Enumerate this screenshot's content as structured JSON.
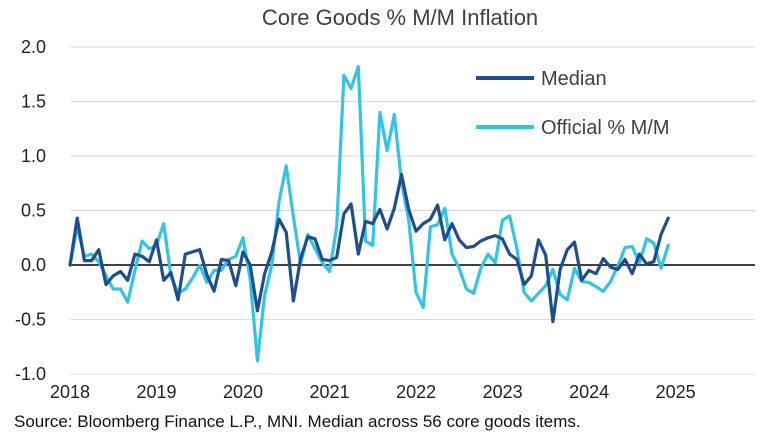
{
  "chart_data": {
    "type": "line",
    "title": "Core Goods % M/M Inflation",
    "source": "Source: Bloomberg Finance L.P., MNI.  Median across 56 core goods items.",
    "ylim": [
      -1.0,
      2.0
    ],
    "xlim": [
      2018.0,
      2025.917
    ],
    "y_ticks": [
      "2.0",
      "1.5",
      "1.0",
      "0.5",
      "0.0",
      "-0.5",
      "-1.0"
    ],
    "y_tick_values": [
      2.0,
      1.5,
      1.0,
      0.5,
      0.0,
      -0.5,
      -1.0
    ],
    "x_ticks": [
      "2018",
      "2019",
      "2020",
      "2021",
      "2022",
      "2023",
      "2024",
      "2025"
    ],
    "x_tick_values": [
      2018,
      2019,
      2020,
      2021,
      2022,
      2023,
      2024,
      2025
    ],
    "grid": "horizontal",
    "legend_position": "top-right",
    "series": [
      {
        "name": "Median",
        "color": "#1F4E8C",
        "x_start": 2018.0,
        "x_step": 0.0833,
        "values": [
          0.0,
          0.43,
          0.04,
          0.04,
          0.14,
          -0.18,
          -0.1,
          -0.06,
          -0.14,
          0.1,
          0.08,
          0.03,
          0.23,
          -0.14,
          -0.07,
          -0.32,
          0.1,
          0.12,
          0.14,
          -0.09,
          -0.24,
          0.05,
          0.04,
          -0.19,
          0.12,
          0.0,
          -0.42,
          -0.08,
          0.12,
          0.42,
          0.3,
          -0.33,
          0.06,
          0.26,
          0.24,
          0.05,
          0.04,
          0.07,
          0.47,
          0.56,
          0.1,
          0.4,
          0.38,
          0.51,
          0.33,
          0.52,
          0.83,
          0.51,
          0.31,
          0.38,
          0.42,
          0.55,
          0.23,
          0.38,
          0.23,
          0.16,
          0.17,
          0.22,
          0.25,
          0.27,
          0.24,
          0.1,
          0.05,
          -0.18,
          -0.1,
          0.23,
          0.09,
          -0.52,
          -0.04,
          0.14,
          0.21,
          -0.14,
          -0.05,
          -0.08,
          0.06,
          -0.02,
          -0.04,
          0.05,
          -0.08,
          0.1,
          0.01,
          0.03,
          0.28,
          0.43
        ]
      },
      {
        "name": "Official % M/M",
        "color": "#33C4E4",
        "x_start": 2018.0,
        "x_step": 0.0833,
        "values": [
          0.0,
          0.35,
          0.08,
          0.1,
          0.03,
          -0.1,
          -0.22,
          -0.22,
          -0.34,
          -0.05,
          0.22,
          0.15,
          0.18,
          0.38,
          -0.1,
          -0.26,
          -0.22,
          -0.12,
          0.0,
          -0.16,
          -0.05,
          -0.05,
          0.05,
          0.08,
          0.25,
          -0.13,
          -0.88,
          -0.28,
          0.0,
          0.58,
          0.91,
          0.44,
          0.01,
          0.28,
          0.15,
          0.02,
          -0.06,
          0.35,
          1.74,
          1.62,
          1.82,
          0.22,
          0.18,
          1.4,
          1.05,
          1.38,
          0.76,
          0.41,
          -0.25,
          -0.39,
          0.35,
          0.37,
          0.52,
          0.1,
          -0.03,
          -0.22,
          -0.26,
          -0.03,
          0.1,
          0.02,
          0.41,
          0.45,
          0.15,
          -0.25,
          -0.33,
          -0.26,
          -0.19,
          -0.04,
          -0.27,
          -0.32,
          -0.03,
          -0.15,
          -0.16,
          -0.2,
          -0.24,
          -0.15,
          -0.01,
          0.16,
          0.17,
          0.02,
          0.24,
          0.2,
          -0.03,
          0.18
        ]
      }
    ]
  }
}
